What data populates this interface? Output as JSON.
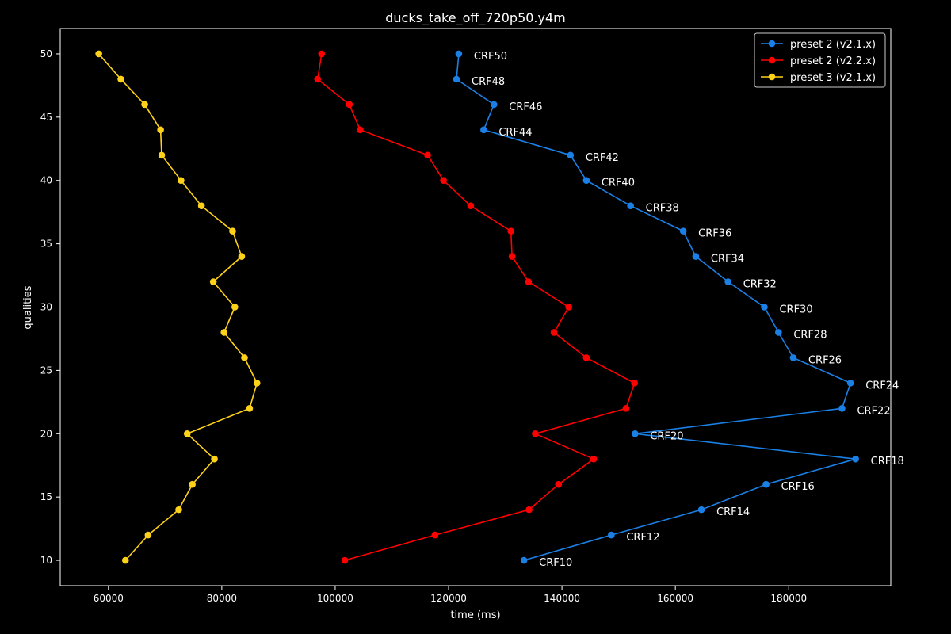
{
  "chart_data": {
    "type": "line",
    "title": "ducks_take_off_720p50.y4m",
    "xlabel": "time (ms)",
    "ylabel": "qualities",
    "xlim": [
      51500,
      198000
    ],
    "ylim": [
      8,
      52
    ],
    "xticks": [
      60000,
      80000,
      100000,
      120000,
      140000,
      160000,
      180000
    ],
    "yticks": [
      10,
      15,
      20,
      25,
      30,
      35,
      40,
      45,
      50
    ],
    "grid": false,
    "legend_position": "top-right",
    "series": [
      {
        "name": "preset 2 (v2.1.x)",
        "color": "#1a80e6",
        "x": [
          133300,
          148700,
          164600,
          176000,
          191800,
          152900,
          189400,
          190900,
          180800,
          178200,
          175700,
          169300,
          163600,
          161400,
          152100,
          144300,
          141500,
          126200,
          128000,
          121400,
          121800
        ],
        "y": [
          10,
          12,
          14,
          16,
          18,
          20,
          22,
          24,
          26,
          28,
          30,
          32,
          34,
          36,
          38,
          40,
          42,
          44,
          46,
          48,
          50
        ],
        "point_labels": [
          "CRF10",
          "CRF12",
          "CRF14",
          "CRF16",
          "CRF18",
          "CRF20",
          "CRF22",
          "CRF24",
          "CRF26",
          "CRF28",
          "CRF30",
          "CRF32",
          "CRF34",
          "CRF36",
          "CRF38",
          "CRF40",
          "CRF42",
          "CRF44",
          "CRF46",
          "CRF48",
          "CRF50"
        ]
      },
      {
        "name": "preset 2 (v2.2.x)",
        "color": "#ff0000",
        "x": [
          101700,
          117600,
          134200,
          139400,
          145600,
          135300,
          151300,
          152800,
          144300,
          138600,
          141200,
          134100,
          131200,
          131000,
          123900,
          119100,
          116300,
          104400,
          102500,
          96900,
          97600
        ],
        "y": [
          10,
          12,
          14,
          16,
          18,
          20,
          22,
          24,
          26,
          28,
          30,
          32,
          34,
          36,
          38,
          40,
          42,
          44,
          46,
          48,
          50
        ]
      },
      {
        "name": "preset 3 (v2.1.x)",
        "color": "#ffd21a",
        "x": [
          63000,
          67000,
          72400,
          74800,
          78700,
          73900,
          84900,
          86200,
          84000,
          80400,
          82300,
          78500,
          83500,
          81900,
          76400,
          72800,
          69400,
          69200,
          66400,
          62200,
          58300
        ],
        "y": [
          10,
          12,
          14,
          16,
          18,
          20,
          22,
          24,
          26,
          28,
          30,
          32,
          34,
          36,
          38,
          40,
          42,
          44,
          46,
          48,
          50
        ]
      }
    ]
  }
}
